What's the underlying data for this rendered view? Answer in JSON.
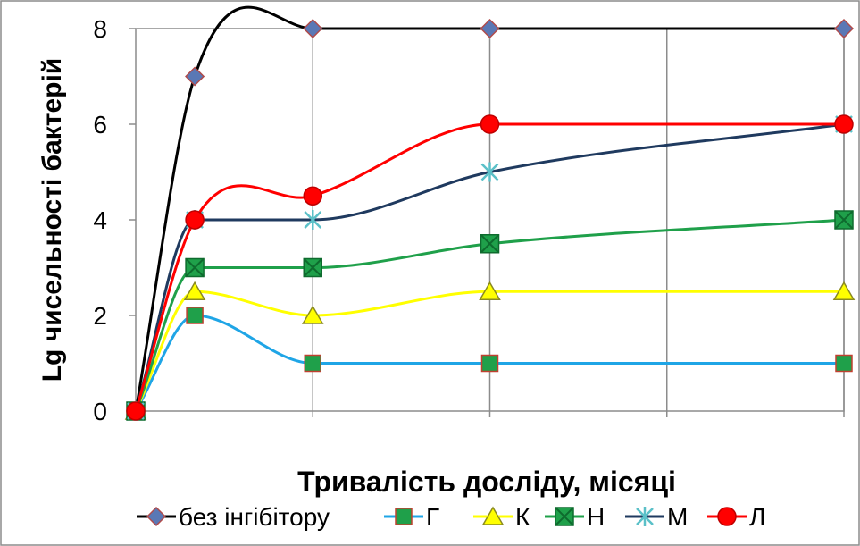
{
  "chart_data": {
    "type": "line",
    "title": "",
    "xlabel": "Тривалість досліду, місяці",
    "ylabel": "Lg чисельності бактерій",
    "x": [
      0,
      0.5,
      1.5,
      3,
      6
    ],
    "xlim": [
      0,
      6
    ],
    "x_gridlines": [
      1.5,
      3,
      4.5,
      6
    ],
    "ylim": [
      0,
      8
    ],
    "y_ticks": [
      "0",
      "2",
      "4",
      "6",
      "8"
    ],
    "grid": "vertical",
    "legend": "bottom",
    "smooth": true,
    "series": [
      {
        "name": "без інгібітору",
        "values": [
          0,
          7,
          8,
          8,
          8
        ],
        "color": "#000000",
        "marker": "diamond",
        "marker_fill": "#5A78B5",
        "marker_stroke": "#B04A4A"
      },
      {
        "name": "Г",
        "values": [
          0,
          2,
          1,
          1,
          1
        ],
        "color": "#1FA5E6",
        "marker": "square",
        "marker_fill": "#1FA04A",
        "marker_stroke": "#C04030"
      },
      {
        "name": "К",
        "values": [
          0,
          2.5,
          2,
          2.5,
          2.5
        ],
        "color": "#FFFF00",
        "marker": "triangle",
        "marker_fill": "#FFFF00",
        "marker_stroke": "#8A8A20"
      },
      {
        "name": "Н",
        "values": [
          0,
          3,
          3,
          3.5,
          4
        ],
        "color": "#1FA04A",
        "marker": "square-x",
        "marker_fill": "#1FA04A",
        "marker_stroke": "#0E6B2E"
      },
      {
        "name": "М",
        "values": [
          0,
          4,
          4,
          5,
          6
        ],
        "color": "#1F3A5F",
        "marker": "asterisk",
        "marker_fill": "#5BC0C8",
        "marker_stroke": "#3A9AA5"
      },
      {
        "name": "Л",
        "values": [
          0,
          4,
          4.5,
          6,
          6
        ],
        "color": "#FF0000",
        "marker": "circle",
        "marker_fill": "#FF0000",
        "marker_stroke": "#C00000"
      }
    ]
  }
}
